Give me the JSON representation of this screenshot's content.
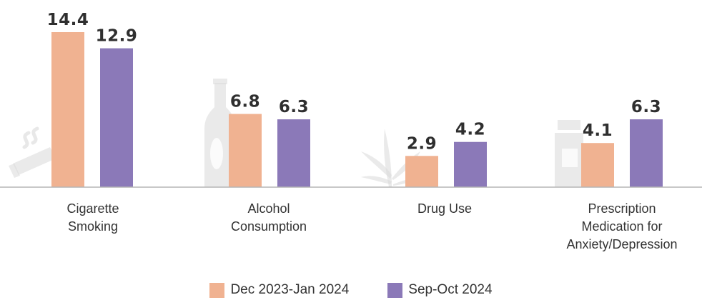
{
  "chart_data": {
    "type": "bar",
    "categories": [
      [
        "Cigarette",
        "Smoking"
      ],
      [
        "Alcohol",
        "Consumption"
      ],
      [
        "Drug Use"
      ],
      [
        "Prescription",
        "Medication for",
        "Anxiety/Depression"
      ]
    ],
    "series": [
      {
        "name": "Dec 2023-Jan 2024",
        "color": "#f0b291",
        "values": [
          14.4,
          6.8,
          2.9,
          4.1
        ]
      },
      {
        "name": "Sep-Oct 2024",
        "color": "#8b79b8",
        "values": [
          12.9,
          6.3,
          4.2,
          6.3
        ]
      }
    ],
    "value_labels": [
      [
        "14.4",
        "6.8",
        "2.9",
        "4.1"
      ],
      [
        "12.9",
        "6.3",
        "4.2",
        "6.3"
      ]
    ],
    "icons": [
      "cigarette-icon",
      "bottle-icon",
      "cannabis-leaf-icon",
      "pill-bottle-icon"
    ],
    "title": "",
    "xlabel": "",
    "ylabel": "",
    "ylim": [
      0,
      14.4
    ],
    "grid": false,
    "legend_position": "bottom-center"
  },
  "legend": [
    {
      "label": "Dec 2023-Jan 2024",
      "color": "#f0b291"
    },
    {
      "label": "Sep-Oct 2024",
      "color": "#8b79b8"
    }
  ]
}
